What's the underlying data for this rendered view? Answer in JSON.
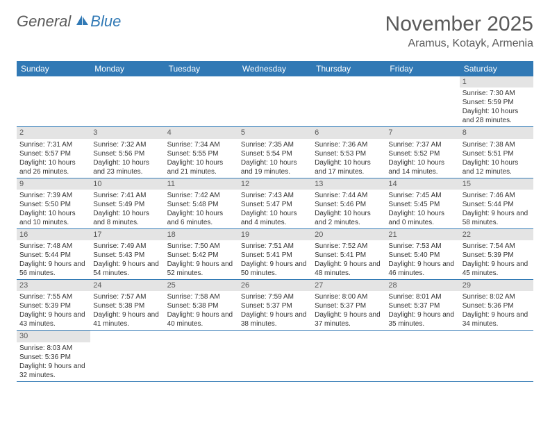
{
  "logo": {
    "text_general": "General",
    "text_blue": "Blue"
  },
  "header": {
    "month_title": "November 2025",
    "location": "Aramus, Kotayk, Armenia"
  },
  "colors": {
    "header_bg": "#3179b5",
    "header_text": "#ffffff",
    "day_number_bg": "#e4e4e4",
    "text": "#5a5a5a"
  },
  "day_names": [
    "Sunday",
    "Monday",
    "Tuesday",
    "Wednesday",
    "Thursday",
    "Friday",
    "Saturday"
  ],
  "weeks": [
    [
      null,
      null,
      null,
      null,
      null,
      null,
      {
        "n": "1",
        "sunrise": "Sunrise: 7:30 AM",
        "sunset": "Sunset: 5:59 PM",
        "daylight": "Daylight: 10 hours and 28 minutes."
      }
    ],
    [
      {
        "n": "2",
        "sunrise": "Sunrise: 7:31 AM",
        "sunset": "Sunset: 5:57 PM",
        "daylight": "Daylight: 10 hours and 26 minutes."
      },
      {
        "n": "3",
        "sunrise": "Sunrise: 7:32 AM",
        "sunset": "Sunset: 5:56 PM",
        "daylight": "Daylight: 10 hours and 23 minutes."
      },
      {
        "n": "4",
        "sunrise": "Sunrise: 7:34 AM",
        "sunset": "Sunset: 5:55 PM",
        "daylight": "Daylight: 10 hours and 21 minutes."
      },
      {
        "n": "5",
        "sunrise": "Sunrise: 7:35 AM",
        "sunset": "Sunset: 5:54 PM",
        "daylight": "Daylight: 10 hours and 19 minutes."
      },
      {
        "n": "6",
        "sunrise": "Sunrise: 7:36 AM",
        "sunset": "Sunset: 5:53 PM",
        "daylight": "Daylight: 10 hours and 17 minutes."
      },
      {
        "n": "7",
        "sunrise": "Sunrise: 7:37 AM",
        "sunset": "Sunset: 5:52 PM",
        "daylight": "Daylight: 10 hours and 14 minutes."
      },
      {
        "n": "8",
        "sunrise": "Sunrise: 7:38 AM",
        "sunset": "Sunset: 5:51 PM",
        "daylight": "Daylight: 10 hours and 12 minutes."
      }
    ],
    [
      {
        "n": "9",
        "sunrise": "Sunrise: 7:39 AM",
        "sunset": "Sunset: 5:50 PM",
        "daylight": "Daylight: 10 hours and 10 minutes."
      },
      {
        "n": "10",
        "sunrise": "Sunrise: 7:41 AM",
        "sunset": "Sunset: 5:49 PM",
        "daylight": "Daylight: 10 hours and 8 minutes."
      },
      {
        "n": "11",
        "sunrise": "Sunrise: 7:42 AM",
        "sunset": "Sunset: 5:48 PM",
        "daylight": "Daylight: 10 hours and 6 minutes."
      },
      {
        "n": "12",
        "sunrise": "Sunrise: 7:43 AM",
        "sunset": "Sunset: 5:47 PM",
        "daylight": "Daylight: 10 hours and 4 minutes."
      },
      {
        "n": "13",
        "sunrise": "Sunrise: 7:44 AM",
        "sunset": "Sunset: 5:46 PM",
        "daylight": "Daylight: 10 hours and 2 minutes."
      },
      {
        "n": "14",
        "sunrise": "Sunrise: 7:45 AM",
        "sunset": "Sunset: 5:45 PM",
        "daylight": "Daylight: 10 hours and 0 minutes."
      },
      {
        "n": "15",
        "sunrise": "Sunrise: 7:46 AM",
        "sunset": "Sunset: 5:44 PM",
        "daylight": "Daylight: 9 hours and 58 minutes."
      }
    ],
    [
      {
        "n": "16",
        "sunrise": "Sunrise: 7:48 AM",
        "sunset": "Sunset: 5:44 PM",
        "daylight": "Daylight: 9 hours and 56 minutes."
      },
      {
        "n": "17",
        "sunrise": "Sunrise: 7:49 AM",
        "sunset": "Sunset: 5:43 PM",
        "daylight": "Daylight: 9 hours and 54 minutes."
      },
      {
        "n": "18",
        "sunrise": "Sunrise: 7:50 AM",
        "sunset": "Sunset: 5:42 PM",
        "daylight": "Daylight: 9 hours and 52 minutes."
      },
      {
        "n": "19",
        "sunrise": "Sunrise: 7:51 AM",
        "sunset": "Sunset: 5:41 PM",
        "daylight": "Daylight: 9 hours and 50 minutes."
      },
      {
        "n": "20",
        "sunrise": "Sunrise: 7:52 AM",
        "sunset": "Sunset: 5:41 PM",
        "daylight": "Daylight: 9 hours and 48 minutes."
      },
      {
        "n": "21",
        "sunrise": "Sunrise: 7:53 AM",
        "sunset": "Sunset: 5:40 PM",
        "daylight": "Daylight: 9 hours and 46 minutes."
      },
      {
        "n": "22",
        "sunrise": "Sunrise: 7:54 AM",
        "sunset": "Sunset: 5:39 PM",
        "daylight": "Daylight: 9 hours and 45 minutes."
      }
    ],
    [
      {
        "n": "23",
        "sunrise": "Sunrise: 7:55 AM",
        "sunset": "Sunset: 5:39 PM",
        "daylight": "Daylight: 9 hours and 43 minutes."
      },
      {
        "n": "24",
        "sunrise": "Sunrise: 7:57 AM",
        "sunset": "Sunset: 5:38 PM",
        "daylight": "Daylight: 9 hours and 41 minutes."
      },
      {
        "n": "25",
        "sunrise": "Sunrise: 7:58 AM",
        "sunset": "Sunset: 5:38 PM",
        "daylight": "Daylight: 9 hours and 40 minutes."
      },
      {
        "n": "26",
        "sunrise": "Sunrise: 7:59 AM",
        "sunset": "Sunset: 5:37 PM",
        "daylight": "Daylight: 9 hours and 38 minutes."
      },
      {
        "n": "27",
        "sunrise": "Sunrise: 8:00 AM",
        "sunset": "Sunset: 5:37 PM",
        "daylight": "Daylight: 9 hours and 37 minutes."
      },
      {
        "n": "28",
        "sunrise": "Sunrise: 8:01 AM",
        "sunset": "Sunset: 5:37 PM",
        "daylight": "Daylight: 9 hours and 35 minutes."
      },
      {
        "n": "29",
        "sunrise": "Sunrise: 8:02 AM",
        "sunset": "Sunset: 5:36 PM",
        "daylight": "Daylight: 9 hours and 34 minutes."
      }
    ],
    [
      {
        "n": "30",
        "sunrise": "Sunrise: 8:03 AM",
        "sunset": "Sunset: 5:36 PM",
        "daylight": "Daylight: 9 hours and 32 minutes."
      },
      null,
      null,
      null,
      null,
      null,
      null
    ]
  ]
}
